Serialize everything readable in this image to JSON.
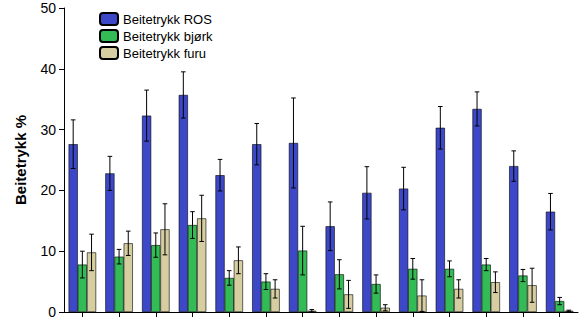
{
  "chart_data": {
    "type": "bar",
    "y_label": "Beitetrykk %",
    "categories": [
      null,
      null,
      null,
      null,
      null,
      null,
      null,
      null,
      null,
      null,
      null,
      null,
      null,
      null
    ],
    "series": [
      {
        "name": "Beitetrykk ROS",
        "color": "#3C48C8",
        "values": [
          27.6,
          22.8,
          32.3,
          35.7,
          22.5,
          27.6,
          27.8,
          14.1,
          19.6,
          20.3,
          30.3,
          33.4,
          24.0,
          16.5
        ],
        "errors": [
          4.0,
          2.8,
          4.2,
          3.8,
          2.6,
          3.4,
          7.4,
          4.0,
          4.3,
          3.5,
          3.5,
          2.8,
          2.5,
          3.0
        ]
      },
      {
        "name": "Beitetrykk bjørk",
        "color": "#33BB55",
        "values": [
          7.8,
          9.1,
          11.0,
          14.3,
          5.6,
          5.0,
          10.1,
          6.2,
          4.6,
          7.1,
          7.1,
          7.8,
          6.0,
          1.8
        ],
        "errors": [
          2.2,
          1.2,
          2.0,
          2.2,
          1.2,
          1.3,
          4.0,
          2.4,
          1.5,
          1.7,
          1.3,
          1.0,
          1.0,
          0.6
        ]
      },
      {
        "name": "Beitetrykk furu",
        "color": "#D6CDA0",
        "values": [
          9.8,
          11.3,
          13.6,
          15.4,
          8.5,
          3.8,
          0.2,
          2.9,
          0.7,
          2.7,
          3.8,
          4.9,
          4.4,
          0.2
        ],
        "errors": [
          3.0,
          2.0,
          4.2,
          3.8,
          2.2,
          1.5,
          0.2,
          2.3,
          0.5,
          2.6,
          1.5,
          1.7,
          2.8,
          0.1
        ]
      }
    ],
    "ylim": [
      0,
      50
    ],
    "yticks": [
      0,
      10,
      20,
      30,
      40,
      50
    ],
    "grid": false,
    "legend": "upper left",
    "tick_labels": "y"
  }
}
